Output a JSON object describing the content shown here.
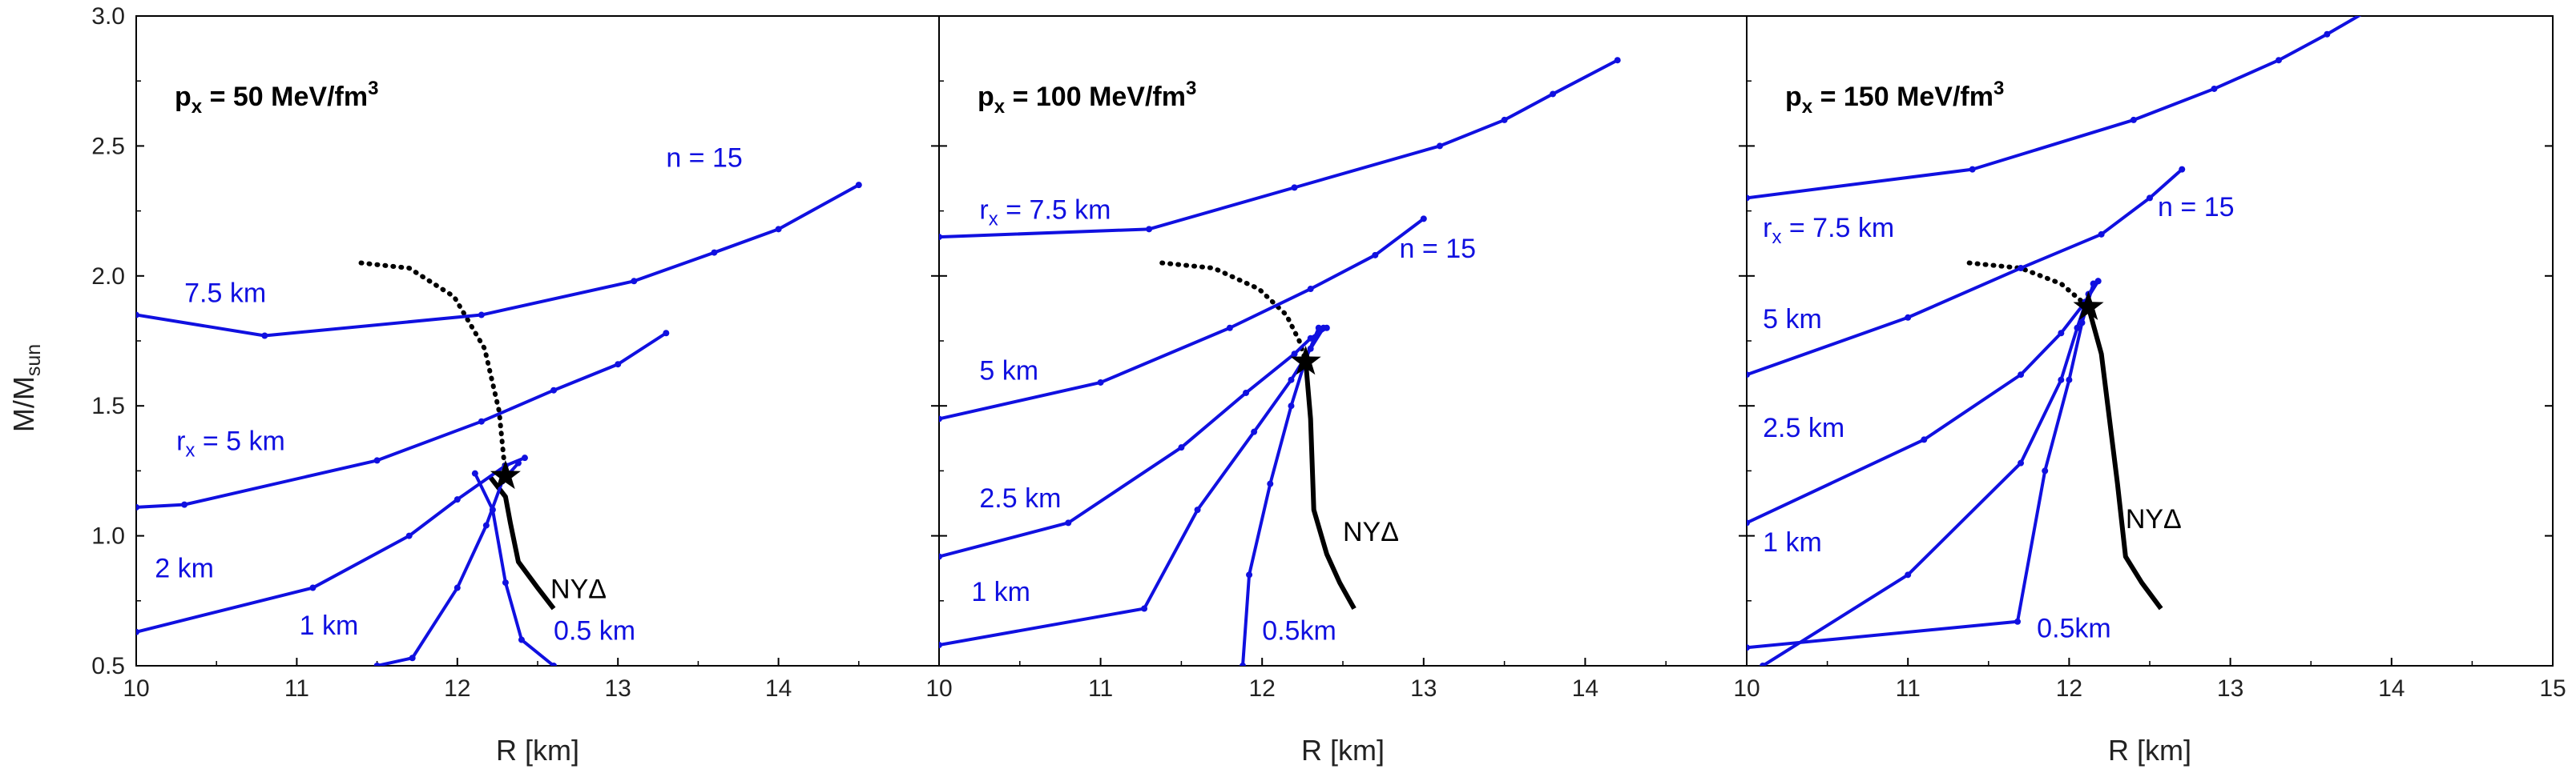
{
  "chart_data": {
    "type": "line",
    "ylabel": "M/M",
    "ylabel_sub": "sun",
    "xlabel": "R [km]",
    "ylim": [
      0.5,
      3.0
    ],
    "yticks": [
      "0.5",
      "1.0",
      "1.5",
      "2.0",
      "2.5",
      "3.0"
    ],
    "colors": {
      "series": "#1010e0",
      "reference": "#000000",
      "frame": "#000000"
    },
    "panels": [
      {
        "title": {
          "p": "p",
          "sub": "x",
          "main": " = 50 MeV/fm",
          "sup": "3"
        },
        "xlim": [
          10,
          15
        ],
        "xticks": [
          "10",
          "11",
          "12",
          "13",
          "14"
        ],
        "series": [
          {
            "label": "0.5 km",
            "x": [
              12.11,
              12.22,
              12.3,
              12.4,
              12.6
            ],
            "y": [
              1.24,
              1.1,
              0.82,
              0.6,
              0.5
            ]
          },
          {
            "label": "1 km",
            "x": [
              11.5,
              11.72,
              12.0,
              12.18,
              12.28,
              12.38
            ],
            "y": [
              0.5,
              0.53,
              0.8,
              1.04,
              1.21,
              1.28
            ]
          },
          {
            "label": "2 km",
            "x": [
              10.0,
              11.1,
              11.7,
              12.0,
              12.3,
              12.42
            ],
            "y": [
              0.63,
              0.8,
              1.0,
              1.14,
              1.27,
              1.3
            ]
          },
          {
            "label_prefix": "r",
            "label_sub": "x",
            "label": " = 5 km",
            "x": [
              10.0,
              10.3,
              11.5,
              12.15,
              12.6,
              13.0,
              13.3
            ],
            "y": [
              1.11,
              1.12,
              1.29,
              1.44,
              1.56,
              1.66,
              1.78
            ]
          },
          {
            "label": "7.5 km",
            "x": [
              10.0,
              10.8,
              12.15,
              13.1,
              13.6,
              14.0,
              14.5
            ],
            "y": [
              1.85,
              1.77,
              1.85,
              1.98,
              2.09,
              2.18,
              2.35
            ]
          }
        ],
        "series_label_n": "n = 15",
        "ny_curve": {
          "label": "NYΔ",
          "solid": {
            "x": [
              12.2,
              12.3,
              12.33,
              12.38,
              12.5,
              12.6
            ],
            "y": [
              1.23,
              1.15,
              1.05,
              0.9,
              0.8,
              0.72
            ]
          },
          "dotted": {
            "x": [
              11.4,
              11.7,
              11.98,
              12.17,
              12.26,
              12.3
            ],
            "y": [
              2.05,
              2.03,
              1.92,
              1.72,
              1.48,
              1.23
            ]
          }
        },
        "star": {
          "x": 12.3,
          "y": 1.23
        }
      },
      {
        "title": {
          "p": "p",
          "sub": "x",
          "main": " = 100 MeV/fm",
          "sup": "3"
        },
        "xlim": [
          10,
          15
        ],
        "xticks": [
          "10",
          "11",
          "12",
          "13",
          "14"
        ],
        "series": [
          {
            "label": "0.5km",
            "x": [
              11.88,
              11.92,
              12.05,
              12.18,
              12.27,
              12.35
            ],
            "y": [
              0.5,
              0.85,
              1.2,
              1.5,
              1.68,
              1.8
            ]
          },
          {
            "label": "1 km",
            "x": [
              10.0,
              11.27,
              11.6,
              11.95,
              12.18,
              12.3,
              12.38
            ],
            "y": [
              0.58,
              0.72,
              1.1,
              1.4,
              1.6,
              1.72,
              1.8
            ]
          },
          {
            "label": "2.5 km",
            "x": [
              10.0,
              10.8,
              11.5,
              11.9,
              12.2,
              12.3,
              12.4
            ],
            "y": [
              0.92,
              1.05,
              1.34,
              1.55,
              1.7,
              1.76,
              1.8
            ]
          },
          {
            "label": "5 km",
            "x": [
              10.0,
              11.0,
              11.8,
              12.3,
              12.7,
              13.0
            ],
            "y": [
              1.45,
              1.59,
              1.8,
              1.95,
              2.08,
              2.22
            ]
          },
          {
            "label_prefix": "r",
            "label_sub": "x",
            "label": " = 7.5 km",
            "x": [
              10.0,
              11.3,
              12.2,
              13.1,
              13.5,
              13.8,
              14.2
            ],
            "y": [
              2.15,
              2.18,
              2.34,
              2.5,
              2.6,
              2.7,
              2.83
            ]
          }
        ],
        "series_label_n": "n = 15",
        "ny_curve": {
          "label": "NYΔ",
          "solid": {
            "x": [
              12.27,
              12.3,
              12.32,
              12.4,
              12.48,
              12.57
            ],
            "y": [
              1.67,
              1.45,
              1.1,
              0.93,
              0.82,
              0.72
            ]
          },
          "dotted": {
            "x": [
              11.38,
              11.7,
              11.98,
              12.15,
              12.23,
              12.27
            ],
            "y": [
              2.05,
              2.03,
              1.95,
              1.85,
              1.75,
              1.67
            ]
          }
        },
        "star": {
          "x": 12.27,
          "y": 1.67
        }
      },
      {
        "title": {
          "p": "p",
          "sub": "x",
          "main": " = 150 MeV/fm",
          "sup": "3"
        },
        "xlim": [
          10,
          15
        ],
        "xticks": [
          "10",
          "11",
          "12",
          "13",
          "14",
          "15"
        ],
        "series": [
          {
            "label": "0.5km",
            "x": [
              10.0,
              11.68,
              11.85,
              12.0,
              12.08,
              12.15
            ],
            "y": [
              0.57,
              0.67,
              1.25,
              1.6,
              1.82,
              1.97
            ]
          },
          {
            "label": "1 km",
            "x": [
              10.1,
              11.0,
              11.7,
              11.95,
              12.05,
              12.12,
              12.18
            ],
            "y": [
              0.5,
              0.85,
              1.28,
              1.6,
              1.8,
              1.93,
              1.98
            ]
          },
          {
            "label": "2.5 km",
            "x": [
              10.0,
              11.1,
              11.7,
              11.95,
              12.1,
              12.18
            ],
            "y": [
              1.05,
              1.37,
              1.62,
              1.78,
              1.9,
              1.98
            ]
          },
          {
            "label": "5 km",
            "x": [
              10.0,
              11.0,
              11.7,
              12.2,
              12.5,
              12.7
            ],
            "y": [
              1.62,
              1.84,
              2.03,
              2.16,
              2.3,
              2.41
            ]
          },
          {
            "label_prefix": "r",
            "label_sub": "x",
            "label": " = 7.5 km",
            "x": [
              10.0,
              11.4,
              12.4,
              12.9,
              13.3,
              13.6,
              13.85
            ],
            "y": [
              2.3,
              2.41,
              2.6,
              2.72,
              2.83,
              2.93,
              3.02
            ]
          }
        ],
        "series_label_n": "n = 15",
        "ny_curve": {
          "label": "NYΔ",
          "solid": {
            "x": [
              12.12,
              12.2,
              12.25,
              12.3,
              12.35,
              12.45,
              12.57
            ],
            "y": [
              1.88,
              1.7,
              1.45,
              1.2,
              0.92,
              0.82,
              0.72
            ]
          },
          "dotted": {
            "x": [
              11.38,
              11.7,
              11.95,
              12.12
            ],
            "y": [
              2.05,
              2.03,
              1.97,
              1.88
            ]
          }
        },
        "star": {
          "x": 12.12,
          "y": 1.88
        }
      }
    ]
  }
}
